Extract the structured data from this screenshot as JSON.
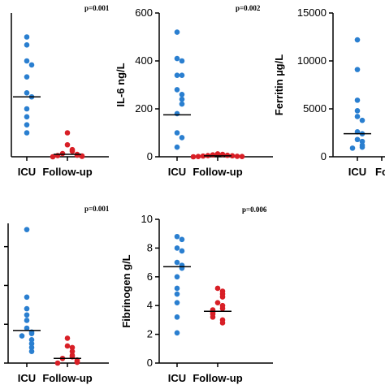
{
  "colors": {
    "icu": "#2a7fd0",
    "followup": "#d81f26",
    "axis": "#000000"
  },
  "chart_data": [
    {
      "type": "scatter",
      "title": "",
      "ylabel": "",
      "pvalue": "p=0.001",
      "categories": [
        "ICU",
        "Follow-up"
      ],
      "ylim": [
        0,
        360
      ],
      "yticks": [],
      "ytick_labels": [],
      "series": [
        {
          "values": [
            300,
            280,
            240,
            230,
            200,
            160,
            150,
            120,
            100,
            80,
            60
          ],
          "median": 150
        },
        {
          "values": [
            60,
            30,
            18,
            14,
            8,
            6,
            4,
            3,
            2,
            1,
            0
          ],
          "median": 6
        }
      ]
    },
    {
      "type": "scatter",
      "title": "",
      "ylabel": "IL-6 ng/L",
      "pvalue": "p=0.002",
      "categories": [
        "ICU",
        "Follow-up"
      ],
      "ylim": [
        0,
        600
      ],
      "yticks": [
        0,
        200,
        400,
        600
      ],
      "ytick_labels": [
        "0",
        "200",
        "400",
        "600"
      ],
      "series": [
        {
          "values": [
            520,
            410,
            400,
            340,
            340,
            280,
            260,
            240,
            220,
            180,
            100,
            80,
            40
          ],
          "median": 175
        },
        {
          "values": [
            12,
            10,
            8,
            6,
            5,
            4,
            3,
            2,
            1,
            1,
            0
          ],
          "median": 4
        }
      ]
    },
    {
      "type": "scatter",
      "title": "",
      "ylabel": "Ferritin µg/L",
      "pvalue": "",
      "categories": [
        "ICU",
        "Fo"
      ],
      "ylim": [
        0,
        15000
      ],
      "yticks": [
        0,
        5000,
        10000,
        15000
      ],
      "ytick_labels": [
        "0",
        "5000",
        "10000",
        "15000"
      ],
      "series": [
        {
          "values": [
            12200,
            9100,
            5900,
            4800,
            4200,
            3800,
            2600,
            2400,
            1800,
            1600,
            1200,
            1000,
            900
          ],
          "median": 2400
        }
      ]
    },
    {
      "type": "scatter",
      "title": "",
      "ylabel": "",
      "pvalue": "p=0.001",
      "categories": [
        "ICU",
        "Follow-up"
      ],
      "ylim": [
        0,
        180
      ],
      "yticks": [
        0,
        50,
        100,
        150
      ],
      "ytick_labels": [],
      "series": [
        {
          "values": [
            172,
            85,
            70,
            62,
            55,
            45,
            40,
            38,
            35,
            30,
            25,
            20,
            15
          ],
          "median": 42
        },
        {
          "values": [
            32,
            22,
            20,
            15,
            10,
            8,
            6,
            4,
            2,
            1,
            0
          ],
          "median": 6
        }
      ]
    },
    {
      "type": "scatter",
      "title": "",
      "ylabel": "Fibrinogen g/L",
      "pvalue": "p=0.006",
      "categories": [
        "ICU",
        "Follow-up"
      ],
      "ylim": [
        0,
        10
      ],
      "yticks": [
        0,
        2,
        4,
        6,
        8,
        10
      ],
      "ytick_labels": [
        "0",
        "2",
        "4",
        "6",
        "8",
        "10"
      ],
      "series": [
        {
          "values": [
            8.8,
            8.6,
            8.0,
            7.8,
            7.0,
            6.8,
            6.6,
            6.0,
            5.2,
            4.8,
            4.2,
            3.2,
            2.1
          ],
          "median": 6.7
        },
        {
          "values": [
            5.2,
            5.0,
            4.8,
            4.6,
            4.2,
            4.0,
            3.8,
            3.7,
            3.5,
            3.4,
            3.2,
            3.0,
            2.8
          ],
          "median": 3.6
        }
      ]
    }
  ]
}
